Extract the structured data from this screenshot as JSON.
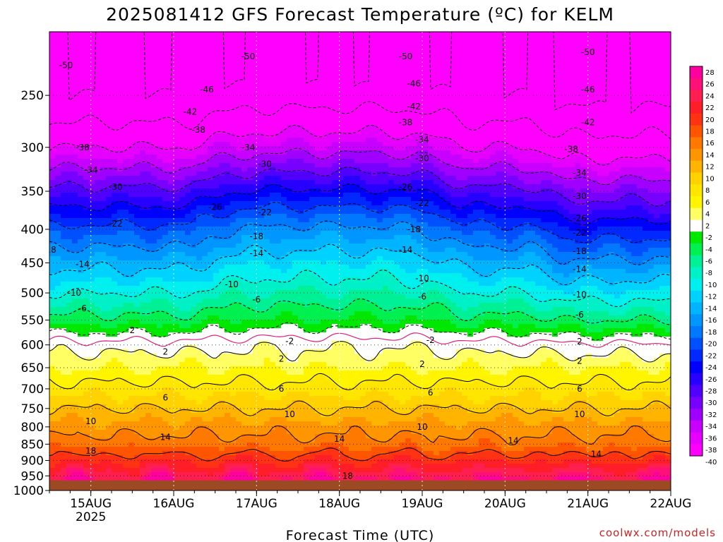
{
  "chart_data": {
    "type": "heatmap",
    "title": "2025081412 GFS Forecast Temperature (ºC) for KELM",
    "xlabel": "Forecast Time (UTC)",
    "ylabel": "",
    "credit": "coolwx.com/models",
    "x_ticks": [
      {
        "label": "15AUG",
        "sublabel": "2025",
        "day": 1
      },
      {
        "label": "16AUG",
        "sublabel": "",
        "day": 2
      },
      {
        "label": "17AUG",
        "sublabel": "",
        "day": 3
      },
      {
        "label": "18AUG",
        "sublabel": "",
        "day": 4
      },
      {
        "label": "19AUG",
        "sublabel": "",
        "day": 5
      },
      {
        "label": "20AUG",
        "sublabel": "",
        "day": 6
      },
      {
        "label": "21AUG",
        "sublabel": "",
        "day": 7
      },
      {
        "label": "22AUG",
        "sublabel": "",
        "day": 8
      }
    ],
    "x_range_days": [
      0.5,
      8.0
    ],
    "y_ticks": [
      250,
      300,
      350,
      400,
      450,
      500,
      550,
      600,
      650,
      700,
      750,
      800,
      850,
      900,
      950,
      1000
    ],
    "y_range_hPa": [
      200,
      1000
    ],
    "y_scale": "log",
    "surface_hPa": 965,
    "grid": true,
    "colorbar_levels": [
      28,
      26,
      24,
      22,
      20,
      18,
      16,
      14,
      12,
      10,
      8,
      6,
      4,
      2,
      -2,
      -4,
      -6,
      -8,
      -10,
      -12,
      -14,
      -16,
      -18,
      -20,
      -22,
      -24,
      -26,
      -28,
      -30,
      -32,
      -34,
      -36,
      -38,
      -40
    ],
    "colorbar_colors": [
      "#ff00a0",
      "#ff1078",
      "#ff1e50",
      "#ff1e28",
      "#ff3214",
      "#ff5500",
      "#ff7800",
      "#ff9600",
      "#ffb400",
      "#ffd200",
      "#ffe600",
      "#fff500",
      "#ffff64",
      "#ffffff",
      "#00e800",
      "#00f050",
      "#00f096",
      "#00f0c8",
      "#00f0f0",
      "#00d2ff",
      "#00b4ff",
      "#0096ff",
      "#0078ff",
      "#0050ff",
      "#0028ff",
      "#0000ff",
      "#2800ff",
      "#5000ff",
      "#7800ff",
      "#a000ff",
      "#c800ff",
      "#e600ff",
      "#ff00ff"
    ],
    "temperature_profile": [
      {
        "p": 200,
        "t": -56
      },
      {
        "p": 250,
        "t": -46
      },
      {
        "p": 300,
        "t": -38
      },
      {
        "p": 350,
        "t": -29
      },
      {
        "p": 400,
        "t": -21
      },
      {
        "p": 450,
        "t": -15
      },
      {
        "p": 500,
        "t": -10
      },
      {
        "p": 550,
        "t": -5
      },
      {
        "p": 600,
        "t": 1
      },
      {
        "p": 650,
        "t": 4
      },
      {
        "p": 700,
        "t": 7
      },
      {
        "p": 750,
        "t": 10
      },
      {
        "p": 800,
        "t": 13
      },
      {
        "p": 850,
        "t": 15
      },
      {
        "p": 900,
        "t": 19
      },
      {
        "p": 950,
        "t": 23
      }
    ],
    "warm_anomaly_days": [
      2.7,
      5.0
    ],
    "contour_labels": [
      {
        "v": "-50",
        "day": 0.7,
        "p": 225
      },
      {
        "v": "-50",
        "day": 2.9,
        "p": 218
      },
      {
        "v": "-50",
        "day": 4.8,
        "p": 218
      },
      {
        "v": "-50",
        "day": 7.0,
        "p": 215
      },
      {
        "v": "-46",
        "day": 2.4,
        "p": 245
      },
      {
        "v": "-46",
        "day": 4.9,
        "p": 240
      },
      {
        "v": "-46",
        "day": 7.0,
        "p": 245
      },
      {
        "v": "-42",
        "day": 0.4,
        "p": 275
      },
      {
        "v": "-42",
        "day": 2.2,
        "p": 265
      },
      {
        "v": "-42",
        "day": 4.9,
        "p": 260
      },
      {
        "v": "-42",
        "day": 7.0,
        "p": 275
      },
      {
        "v": "-38",
        "day": 0.9,
        "p": 300
      },
      {
        "v": "-38",
        "day": 2.3,
        "p": 282
      },
      {
        "v": "-38",
        "day": 4.8,
        "p": 275
      },
      {
        "v": "-38",
        "day": 6.8,
        "p": 302
      },
      {
        "v": "-34",
        "day": 1.0,
        "p": 325
      },
      {
        "v": "-34",
        "day": 2.9,
        "p": 300
      },
      {
        "v": "-34",
        "day": 5.0,
        "p": 292
      },
      {
        "v": "-34",
        "day": 6.9,
        "p": 328
      },
      {
        "v": "-30",
        "day": 1.3,
        "p": 345
      },
      {
        "v": "-30",
        "day": 3.1,
        "p": 318
      },
      {
        "v": "-30",
        "day": 5.0,
        "p": 312
      },
      {
        "v": "-30",
        "day": 6.9,
        "p": 356
      },
      {
        "v": "-26",
        "day": 2.5,
        "p": 370
      },
      {
        "v": "-26",
        "day": 4.8,
        "p": 345
      },
      {
        "v": "-26",
        "day": 6.9,
        "p": 385
      },
      {
        "v": "-22",
        "day": 1.3,
        "p": 392
      },
      {
        "v": "-22",
        "day": 3.1,
        "p": 377
      },
      {
        "v": "-22",
        "day": 5.0,
        "p": 365
      },
      {
        "v": "-22",
        "day": 6.9,
        "p": 405
      },
      {
        "v": "-18",
        "day": 0.5,
        "p": 430
      },
      {
        "v": "-18",
        "day": 3.0,
        "p": 410
      },
      {
        "v": "-18",
        "day": 4.9,
        "p": 400
      },
      {
        "v": "-18",
        "day": 6.9,
        "p": 432
      },
      {
        "v": "-14",
        "day": 0.9,
        "p": 452
      },
      {
        "v": "-14",
        "day": 3.0,
        "p": 435
      },
      {
        "v": "-14",
        "day": 4.8,
        "p": 430
      },
      {
        "v": "-14",
        "day": 6.9,
        "p": 460
      },
      {
        "v": "-10",
        "day": 0.8,
        "p": 500
      },
      {
        "v": "-10",
        "day": 2.7,
        "p": 485
      },
      {
        "v": "-10",
        "day": 5.0,
        "p": 475
      },
      {
        "v": "-10",
        "day": 6.9,
        "p": 503
      },
      {
        "v": "-6",
        "day": 0.9,
        "p": 528
      },
      {
        "v": "-6",
        "day": 3.0,
        "p": 512
      },
      {
        "v": "-6",
        "day": 5.0,
        "p": 507
      },
      {
        "v": "-6",
        "day": 6.9,
        "p": 540
      },
      {
        "v": "2",
        "day": 1.5,
        "p": 570
      },
      {
        "v": "-2",
        "day": 3.4,
        "p": 592
      },
      {
        "v": "-2",
        "day": 5.1,
        "p": 590
      },
      {
        "v": "2",
        "day": 6.9,
        "p": 593
      },
      {
        "v": "2",
        "day": 1.9,
        "p": 615
      },
      {
        "v": "2",
        "day": 3.3,
        "p": 630
      },
      {
        "v": "2",
        "day": 5.0,
        "p": 642
      },
      {
        "v": "2",
        "day": 6.9,
        "p": 635
      },
      {
        "v": "6",
        "day": 1.9,
        "p": 722
      },
      {
        "v": "6",
        "day": 3.3,
        "p": 700
      },
      {
        "v": "6",
        "day": 5.1,
        "p": 710
      },
      {
        "v": "6",
        "day": 6.9,
        "p": 700
      },
      {
        "v": "10",
        "day": 1.0,
        "p": 785
      },
      {
        "v": "10",
        "day": 3.4,
        "p": 765
      },
      {
        "v": "10",
        "day": 5.0,
        "p": 800
      },
      {
        "v": "10",
        "day": 6.9,
        "p": 765
      },
      {
        "v": "14",
        "day": 1.9,
        "p": 830
      },
      {
        "v": "14",
        "day": 4.0,
        "p": 835
      },
      {
        "v": "14",
        "day": 6.1,
        "p": 840
      },
      {
        "v": "14",
        "day": 7.1,
        "p": 880
      },
      {
        "v": "18",
        "day": 1.0,
        "p": 870
      },
      {
        "v": "18",
        "day": 4.1,
        "p": 950
      }
    ]
  }
}
